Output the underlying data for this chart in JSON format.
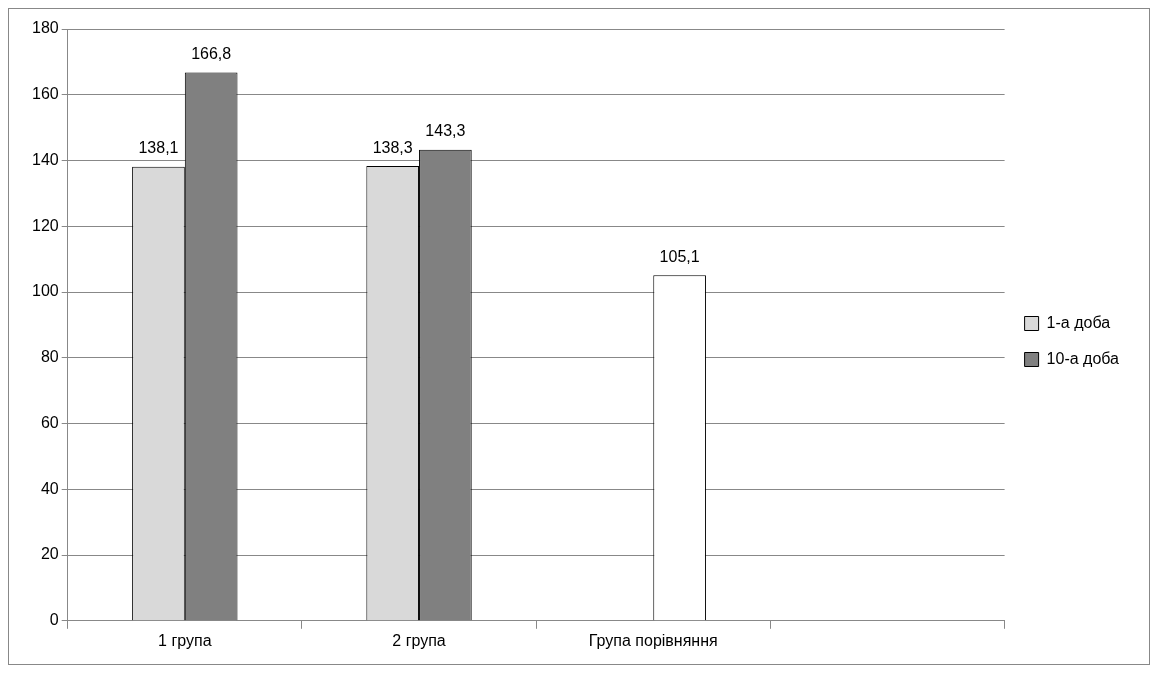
{
  "chart_data": {
    "type": "bar",
    "categories": [
      "1 група",
      "2 група",
      "Група порівняння",
      null
    ],
    "series": [
      {
        "name": "1-а доба",
        "color": "#d9d9d9",
        "values": [
          138.1,
          138.3,
          null,
          null
        ],
        "value_labels": [
          "138,1",
          "138,3",
          null,
          null
        ]
      },
      {
        "name": "10-а доба",
        "color": "#808080",
        "colors": [
          "#808080",
          "#808080",
          "#ffffff",
          null
        ],
        "values": [
          166.8,
          143.3,
          105.1,
          null
        ],
        "value_labels": [
          "166,8",
          "143,3",
          "105,1",
          null
        ]
      }
    ],
    "ylim": [
      0,
      180
    ],
    "yticks": [
      0,
      20,
      40,
      60,
      80,
      100,
      120,
      140,
      160,
      180
    ],
    "grid": "y",
    "legend": "right"
  }
}
